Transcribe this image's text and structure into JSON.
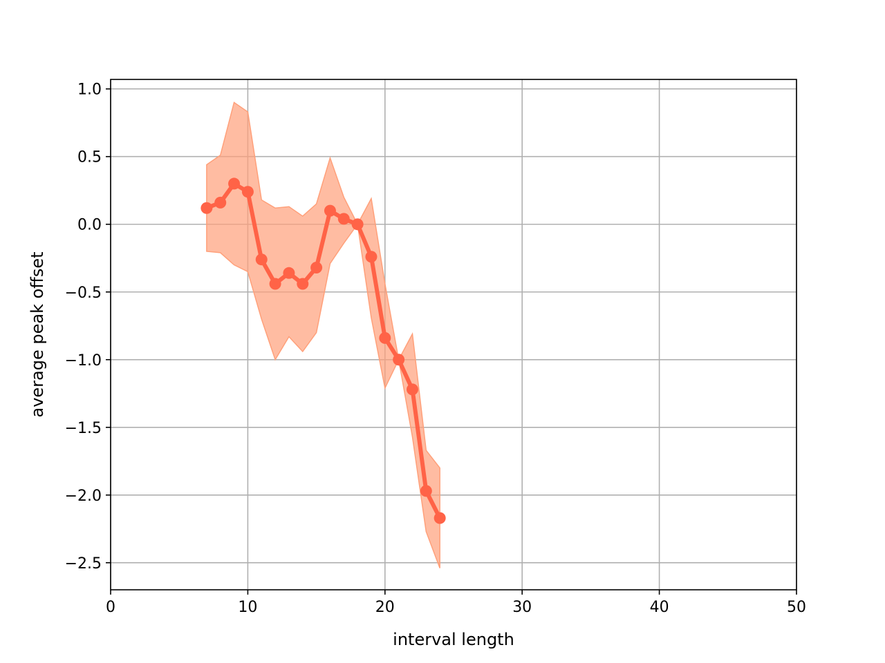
{
  "chart_data": {
    "type": "line",
    "title": "",
    "xlabel": "interval length",
    "ylabel": "average peak offset",
    "xlim": [
      0,
      50
    ],
    "ylim": [
      -2.7,
      1.07
    ],
    "xticks": [
      0,
      10,
      20,
      30,
      40,
      50
    ],
    "xtick_labels": [
      "0",
      "10",
      "20",
      "30",
      "40",
      "50"
    ],
    "yticks": [
      1.0,
      0.5,
      0.0,
      -0.5,
      -1.0,
      -1.5,
      -2.0,
      -2.5
    ],
    "ytick_labels": [
      "1.0",
      "0.5",
      "0.0",
      "−0.5",
      "−1.0",
      "−1.5",
      "−2.0",
      "−2.5"
    ],
    "grid": true,
    "legend": false,
    "colors": {
      "line": "#ff6347",
      "band": "#ffa07a",
      "grid": "#b0b0b0"
    },
    "series": [
      {
        "x": [
          7,
          8,
          9,
          10,
          11,
          12,
          13,
          14,
          15,
          16,
          17,
          18,
          19,
          20,
          21,
          22,
          23,
          24
        ],
        "values": [
          0.12,
          0.16,
          0.3,
          0.24,
          -0.26,
          -0.44,
          -0.36,
          -0.44,
          -0.32,
          0.1,
          0.04,
          0.0,
          -0.24,
          -0.84,
          -1.0,
          -1.22,
          -1.97,
          -2.17
        ],
        "upper": [
          0.44,
          0.51,
          0.9,
          0.83,
          0.18,
          0.12,
          0.13,
          0.06,
          0.15,
          0.49,
          0.2,
          0.0,
          0.19,
          -0.44,
          -1.0,
          -0.81,
          -1.67,
          -1.8
        ],
        "lower": [
          -0.2,
          -0.21,
          -0.3,
          -0.35,
          -0.7,
          -1.0,
          -0.83,
          -0.94,
          -0.8,
          -0.29,
          -0.14,
          0.0,
          -0.69,
          -1.21,
          -1.0,
          -1.57,
          -2.27,
          -2.54
        ]
      }
    ]
  }
}
